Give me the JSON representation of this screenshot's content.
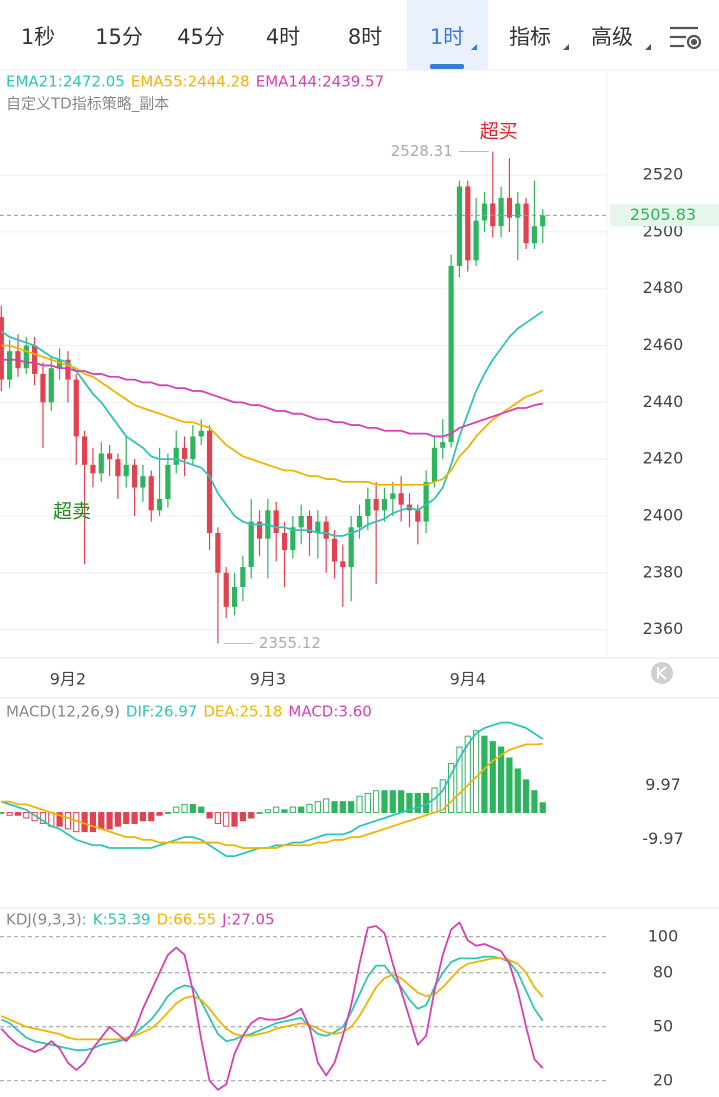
{
  "tabs": [
    "1秒",
    "15分",
    "45分",
    "4时",
    "8时",
    "1时",
    "指标",
    "高级"
  ],
  "active_tab": 5,
  "chart_data": [
    {
      "type": "candlestick",
      "legend": [
        "EMA21:2472.05",
        "EMA55:2444.28",
        "EMA144:2439.57"
      ],
      "subtitle": "自定义TD指标策略_副本",
      "annotations": [
        "超买",
        "超卖"
      ],
      "up_color": "#2db55d",
      "down_color": "#e0424f",
      "categories": [
        null,
        null,
        null,
        null,
        null,
        null,
        null,
        null,
        "9月2",
        null,
        null,
        null,
        null,
        null,
        null,
        null,
        null,
        null,
        null,
        null,
        null,
        null,
        null,
        null,
        null,
        null,
        null,
        null,
        null,
        null,
        null,
        null,
        "9月3",
        null,
        null,
        null,
        null,
        null,
        null,
        null,
        null,
        null,
        null,
        null,
        null,
        null,
        null,
        null,
        null,
        null,
        null,
        null,
        null,
        null,
        null,
        null,
        "9月4",
        null,
        null,
        null,
        null,
        null,
        null,
        null,
        null,
        null
      ],
      "open": [
        2470,
        2448,
        2458,
        2452,
        2460,
        2450,
        2440,
        2452,
        2455,
        2448,
        2428,
        2418,
        2415,
        2422,
        2420,
        2414,
        2418,
        2410,
        2414,
        2402,
        2406,
        2418,
        2424,
        2420,
        2428,
        2430,
        2394,
        2380,
        2368,
        2375,
        2382,
        2398,
        2392,
        2402,
        2394,
        2388,
        2396,
        2400,
        2394,
        2398,
        2392,
        2384,
        2382,
        2396,
        2400,
        2406,
        2402,
        2406,
        2408,
        2404,
        2402,
        2398,
        2412,
        2424,
        2426,
        2488,
        2516,
        2490,
        2504,
        2510,
        2502,
        2512,
        2505,
        2510,
        2496,
        2502
      ],
      "high": [
        2474,
        2462,
        2464,
        2463,
        2463,
        2454,
        2456,
        2459,
        2458,
        2450,
        2430,
        2424,
        2426,
        2425,
        2422,
        2428,
        2420,
        2418,
        2416,
        2424,
        2422,
        2430,
        2428,
        2432,
        2434,
        2432,
        2396,
        2382,
        2380,
        2386,
        2406,
        2402,
        2406,
        2405,
        2398,
        2400,
        2404,
        2402,
        2402,
        2400,
        2395,
        2390,
        2400,
        2404,
        2410,
        2412,
        2410,
        2412,
        2414,
        2408,
        2404,
        2416,
        2428,
        2434,
        2492,
        2518,
        2518,
        2512,
        2514,
        2528.31,
        2516,
        2526,
        2514,
        2512,
        2518,
        2508
      ],
      "low": [
        2444,
        2445,
        2449,
        2450,
        2446,
        2424,
        2437,
        2448,
        2440,
        2418,
        2383,
        2410,
        2412,
        2414,
        2406,
        2410,
        2400,
        2405,
        2398,
        2400,
        2403,
        2415,
        2414,
        2418,
        2425,
        2388,
        2355.12,
        2364,
        2365,
        2370,
        2378,
        2386,
        2378,
        2384,
        2375,
        2385,
        2390,
        2386,
        2385,
        2380,
        2378,
        2368,
        2370,
        2392,
        2395,
        2376,
        2398,
        2400,
        2398,
        2396,
        2390,
        2394,
        2410,
        2420,
        2424,
        2484,
        2486,
        2488,
        2500,
        2498,
        2498,
        2500,
        2490,
        2494,
        2494,
        2496
      ],
      "close": [
        2448,
        2458,
        2452,
        2460,
        2450,
        2440,
        2452,
        2455,
        2448,
        2428,
        2418,
        2415,
        2422,
        2420,
        2414,
        2418,
        2410,
        2414,
        2402,
        2406,
        2418,
        2424,
        2420,
        2428,
        2430,
        2394,
        2380,
        2368,
        2375,
        2382,
        2398,
        2392,
        2402,
        2394,
        2388,
        2396,
        2400,
        2394,
        2398,
        2392,
        2384,
        2382,
        2396,
        2400,
        2406,
        2402,
        2406,
        2408,
        2404,
        2402,
        2398,
        2412,
        2424,
        2426,
        2488,
        2516,
        2490,
        2504,
        2510,
        2502,
        2512,
        2505,
        2510,
        2496,
        2502,
        2505.83
      ],
      "series": [
        {
          "color": "#2ec4b6",
          "values": [
            2465,
            2463,
            2462,
            2461,
            2460,
            2458,
            2456,
            2455,
            2454,
            2451,
            2447,
            2443,
            2440,
            2436,
            2432,
            2428,
            2426,
            2424,
            2421,
            2420,
            2420,
            2420,
            2419,
            2418,
            2417,
            2414,
            2408,
            2404,
            2400,
            2398,
            2397,
            2397,
            2397,
            2396,
            2396,
            2395,
            2395,
            2395,
            2394,
            2394,
            2393,
            2393,
            2394,
            2395,
            2397,
            2398,
            2399,
            2401,
            2402,
            2403,
            2402,
            2404,
            2406,
            2410,
            2418,
            2428,
            2436,
            2444,
            2450,
            2455,
            2459,
            2463,
            2466,
            2468,
            2470,
            2472.05
          ]
        },
        {
          "color": "#f0b400",
          "values": [
            2460,
            2460,
            2459,
            2458,
            2457,
            2456,
            2455,
            2454,
            2453,
            2452,
            2450,
            2449,
            2447,
            2445,
            2443,
            2441,
            2439,
            2438,
            2437,
            2436,
            2435,
            2434,
            2433,
            2433,
            2432,
            2431,
            2428,
            2425,
            2423,
            2421,
            2420,
            2419,
            2418,
            2417,
            2416,
            2416,
            2415,
            2414,
            2414,
            2413,
            2413,
            2412,
            2412,
            2412,
            2412,
            2411,
            2411,
            2411,
            2411,
            2411,
            2411,
            2411,
            2412,
            2413,
            2416,
            2421,
            2424,
            2428,
            2431,
            2434,
            2436,
            2438,
            2440,
            2442,
            2443,
            2444.28
          ]
        },
        {
          "color": "#d63fb0",
          "values": [
            2455,
            2455,
            2455,
            2454,
            2454,
            2453,
            2453,
            2452,
            2452,
            2451,
            2451,
            2450,
            2450,
            2449,
            2449,
            2448,
            2448,
            2447,
            2447,
            2446,
            2446,
            2445,
            2445,
            2444,
            2444,
            2443,
            2442,
            2441,
            2440,
            2440,
            2439,
            2439,
            2438,
            2437,
            2437,
            2436,
            2436,
            2435,
            2434,
            2434,
            2433,
            2433,
            2432,
            2432,
            2431,
            2431,
            2430,
            2430,
            2430,
            2429,
            2429,
            2429,
            2428,
            2428,
            2429,
            2431,
            2432,
            2433,
            2434,
            2435,
            2436,
            2437,
            2438,
            2438,
            2439,
            2439.57
          ]
        }
      ],
      "ylim": [
        2350,
        2557
      ],
      "yticks": [
        2360,
        2380,
        2400,
        2420,
        2440,
        2460,
        2480,
        2500,
        2520
      ],
      "grid": true
    },
    {
      "type": "macd",
      "title": "MACD(12,26,9)",
      "legend": [
        "DIF:26.97",
        "DEA:25.18",
        "MACD:3.60"
      ],
      "up_color": "#2db55d",
      "down_color": "#e0424f",
      "series": [
        {
          "color": "#2ec4b6",
          "values": [
            4,
            3,
            2,
            1,
            -1,
            -3,
            -5,
            -6,
            -8,
            -10,
            -11,
            -12,
            -12,
            -13,
            -13,
            -13,
            -13,
            -13,
            -13,
            -12,
            -11,
            -10,
            -9,
            -9,
            -10,
            -12,
            -14,
            -16,
            -16,
            -15,
            -14,
            -13,
            -13,
            -12,
            -12,
            -11,
            -11,
            -10,
            -9,
            -8,
            -8,
            -8,
            -7,
            -5,
            -4,
            -3,
            -2,
            -1,
            0,
            1,
            2,
            3,
            5,
            8,
            14,
            20,
            25,
            29,
            31,
            32,
            33,
            33,
            32,
            31,
            29,
            26.97
          ]
        },
        {
          "color": "#f0b400",
          "values": [
            4,
            4,
            3,
            3,
            2,
            1,
            0,
            -1,
            -2,
            -3,
            -4,
            -5,
            -6,
            -7,
            -8,
            -9,
            -9,
            -10,
            -10,
            -11,
            -11,
            -11,
            -11,
            -11,
            -11,
            -11,
            -11,
            -12,
            -12,
            -13,
            -13,
            -13,
            -13,
            -13,
            -12,
            -12,
            -12,
            -12,
            -11,
            -11,
            -10,
            -10,
            -9,
            -9,
            -8,
            -7,
            -6,
            -5,
            -4,
            -3,
            -2,
            -1,
            0,
            1,
            4,
            7,
            10,
            13,
            16,
            19,
            21,
            23,
            24,
            25,
            25,
            25.18
          ]
        },
        {
          "color": "#d63fb0",
          "style": "bar",
          "values": [
            0,
            -1,
            -1,
            -2,
            -3,
            -4,
            -5,
            -5,
            -6,
            -7,
            -7,
            -7,
            -6,
            -6,
            -5,
            -4,
            -4,
            -3,
            -3,
            -1,
            0,
            2,
            3,
            3,
            2,
            -2,
            -4,
            -5,
            -5,
            -3,
            -2,
            0,
            1,
            2,
            1,
            2,
            2,
            3,
            4,
            5,
            4,
            4,
            4,
            6,
            7,
            8,
            8,
            8,
            8,
            7,
            7,
            7,
            9,
            12,
            18,
            24,
            28,
            30,
            28,
            26,
            24,
            20,
            16,
            12,
            8,
            3.6
          ]
        }
      ],
      "ylim": [
        -35,
        42
      ],
      "yticks": [
        9.97,
        -9.97
      ],
      "grid": false
    },
    {
      "type": "line",
      "title": "KDJ(9,3,3):",
      "legend": [
        "K:53.39",
        "D:66.55",
        "J:27.05"
      ],
      "series": [
        {
          "color": "#2ec4b6",
          "values": [
            54,
            52,
            48,
            44,
            42,
            41,
            40,
            39,
            38,
            37,
            37,
            38,
            40,
            41,
            42,
            43,
            46,
            50,
            54,
            60,
            67,
            71,
            73,
            72,
            64,
            55,
            46,
            42,
            43,
            45,
            46,
            48,
            50,
            52,
            53,
            54,
            55,
            50,
            46,
            45,
            47,
            50,
            58,
            68,
            78,
            84,
            84,
            78,
            72,
            65,
            60,
            62,
            72,
            80,
            86,
            88,
            88,
            88,
            89,
            89,
            88,
            86,
            80,
            70,
            60,
            53.39
          ]
        },
        {
          "color": "#f0b400",
          "values": [
            56,
            54,
            52,
            50,
            49,
            48,
            47,
            46,
            44,
            43,
            43,
            43,
            43,
            43,
            43,
            44,
            45,
            47,
            49,
            53,
            58,
            63,
            66,
            67,
            65,
            60,
            54,
            49,
            46,
            45,
            45,
            46,
            47,
            49,
            50,
            51,
            52,
            51,
            49,
            47,
            46,
            47,
            50,
            56,
            64,
            72,
            77,
            79,
            77,
            73,
            69,
            67,
            68,
            72,
            77,
            82,
            85,
            86,
            87,
            88,
            88,
            87,
            85,
            80,
            72,
            66.55
          ]
        },
        {
          "color": "#d63fb0",
          "values": [
            49,
            44,
            40,
            38,
            36,
            38,
            42,
            38,
            30,
            26,
            30,
            38,
            44,
            50,
            46,
            42,
            48,
            60,
            70,
            80,
            90,
            94,
            90,
            70,
            43,
            20,
            15,
            18,
            35,
            45,
            52,
            55,
            54,
            54,
            55,
            57,
            60,
            50,
            30,
            23,
            30,
            45,
            62,
            85,
            105,
            106,
            102,
            85,
            70,
            55,
            40,
            45,
            70,
            90,
            104,
            108,
            98,
            95,
            96,
            94,
            92,
            85,
            70,
            50,
            32,
            27.05
          ]
        }
      ],
      "ylim": [
        11,
        116
      ],
      "yticks": [
        20,
        50,
        80,
        100
      ],
      "grid": true,
      "grid_style": "dashed"
    }
  ]
}
